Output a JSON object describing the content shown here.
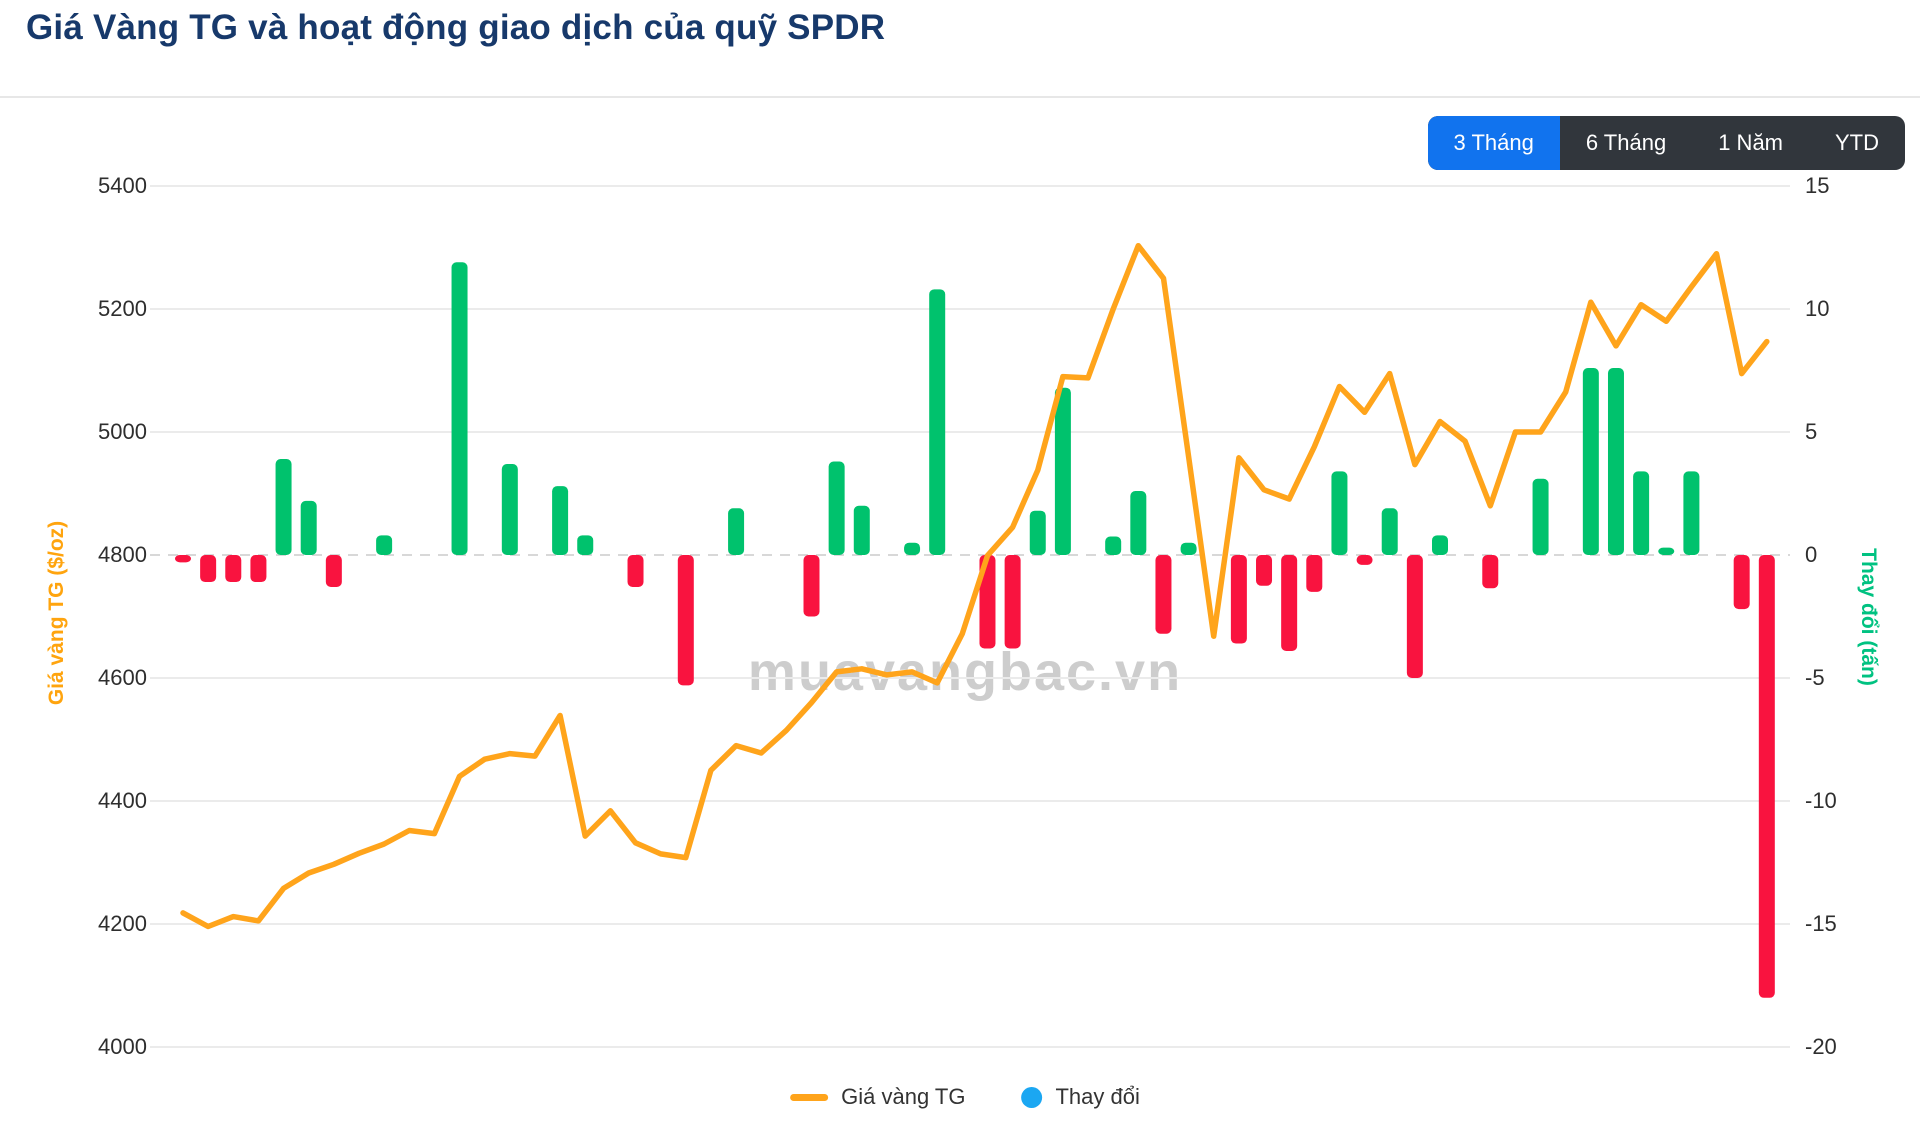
{
  "page": {
    "title": "Giá Vàng TG và hoạt động giao dịch của quỹ SPDR",
    "title_color": "#17396b",
    "background": "#ffffff"
  },
  "toolbar": {
    "buttons": [
      {
        "label": "3 Tháng",
        "active": true
      },
      {
        "label": "6 Tháng",
        "active": false
      },
      {
        "label": "1 Năm",
        "active": false
      },
      {
        "label": "YTD",
        "active": false
      }
    ],
    "active_bg": "#1173ee",
    "inactive_bg": "#31363c",
    "text_color": "#ffffff"
  },
  "watermark": {
    "text": "muavangbac.vn",
    "color": "#bdbdbd"
  },
  "axes": {
    "left": {
      "title": "Giá vàng TG ($/oz)",
      "color": "#ffa40e",
      "ticks": [
        "5400",
        "5200",
        "5000",
        "4800",
        "4600",
        "4400",
        "4200",
        "4000"
      ]
    },
    "right": {
      "title": "Thay đổi (tấn)",
      "color": "#00c281",
      "ticks": [
        "15",
        "10",
        "5",
        "0",
        "-5",
        "-10",
        "-15",
        "-20"
      ]
    }
  },
  "legend": [
    {
      "label": "Giá vàng TG",
      "marker": "line-dash",
      "color": "#ffa41b"
    },
    {
      "label": "Thay đổi",
      "marker": "circle",
      "color": "#1ba7f2"
    }
  ],
  "chart_data": {
    "type": "line+bar",
    "x": "64 consecutive trading days (no x-axis labels shown)",
    "left_axis": {
      "label": "Giá vàng TG ($/oz)",
      "min": 4000,
      "max": 5400,
      "tick_step": 200
    },
    "right_axis": {
      "label": "Thay đổi (tấn)",
      "min": -20,
      "max": 15,
      "tick_step": 5
    },
    "grid": {
      "horizontal": true,
      "vertical": false,
      "zero_line_dashed": true
    },
    "legend_position": "bottom-center",
    "series": [
      {
        "name": "Giá vàng TG",
        "type": "line",
        "axis": "left",
        "color": "#ffa41b",
        "values": [
          4218,
          4196,
          4212,
          4205,
          4258,
          4283,
          4297,
          4315,
          4330,
          4352,
          4347,
          4440,
          4468,
          4477,
          4473,
          4539,
          4343,
          4384,
          4332,
          4314,
          4308,
          4450,
          4490,
          4478,
          4515,
          4560,
          4610,
          4615,
          4605,
          4610,
          4592,
          4672,
          4799,
          4845,
          4938,
          5090,
          5088,
          5200,
          5303,
          5250,
          4960,
          4668,
          4958,
          4906,
          4891,
          4976,
          5074,
          5032,
          5095,
          4947,
          5017,
          4985,
          4880,
          5000,
          5000,
          5065,
          5211,
          5140,
          5207,
          5180,
          5236,
          5290,
          5095,
          5147
        ]
      },
      {
        "name": "Thay đổi",
        "type": "bar",
        "axis": "right",
        "color_positive": "#00c26d",
        "color_negative": "#f9133f",
        "values": [
          -0.3,
          -1.1,
          -1.1,
          -1.1,
          3.9,
          2.2,
          -1.3,
          0,
          0.8,
          0,
          0,
          11.9,
          0,
          3.7,
          0,
          2.8,
          0.8,
          0,
          -1.3,
          0,
          -5.3,
          0,
          1.9,
          0,
          0,
          -2.5,
          3.8,
          2,
          0,
          0.5,
          10.8,
          0,
          -3.8,
          -3.8,
          1.8,
          6.8,
          0,
          0.75,
          2.6,
          -3.2,
          0.5,
          0,
          -3.6,
          -1.25,
          -3.9,
          -1.5,
          3.4,
          -0.4,
          1.9,
          -5,
          0.8,
          0,
          -1.35,
          0,
          3.1,
          0,
          7.6,
          7.6,
          3.4,
          0.3,
          3.4,
          0,
          -2.2,
          -18
        ]
      }
    ]
  }
}
